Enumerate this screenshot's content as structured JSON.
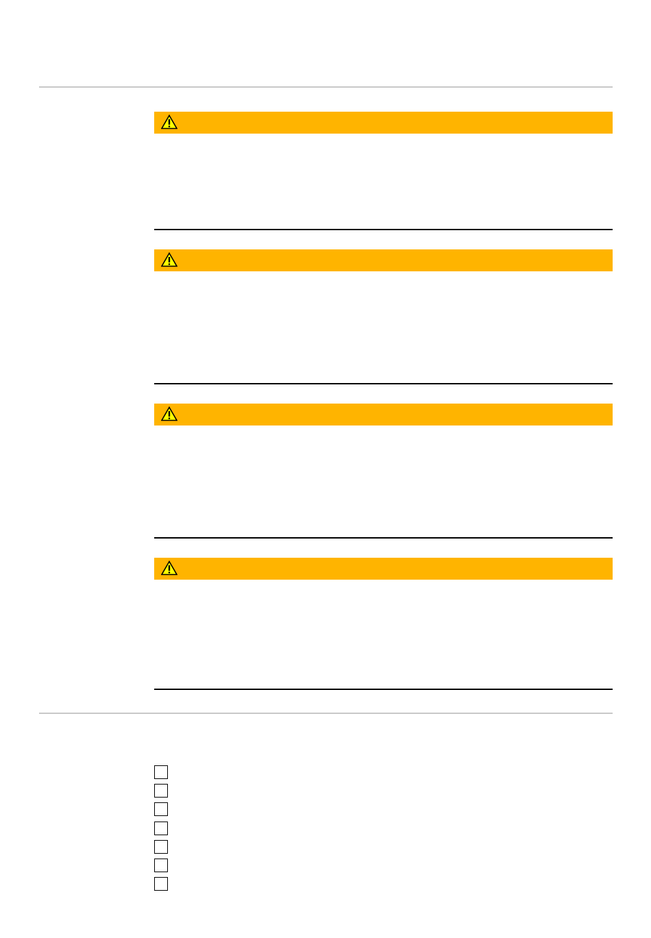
{
  "colors": {
    "warning_bar": "#ffb400",
    "warning_icon_fill": "#ffff00",
    "divider": "#c8c8c8",
    "rule": "#000000"
  },
  "warnings": [
    {
      "icon": "warning-triangle-icon"
    },
    {
      "icon": "warning-triangle-icon"
    },
    {
      "icon": "warning-triangle-icon"
    },
    {
      "icon": "warning-triangle-icon"
    }
  ],
  "checklist": [
    {
      "checked": false
    },
    {
      "checked": false
    },
    {
      "checked": false
    },
    {
      "checked": false
    },
    {
      "checked": false
    },
    {
      "checked": false
    },
    {
      "checked": false
    }
  ]
}
